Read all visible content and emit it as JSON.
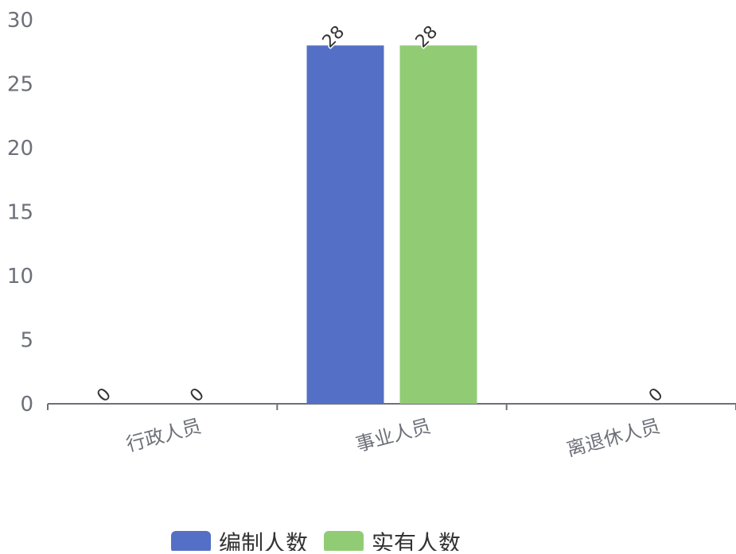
{
  "colors": {
    "series_1": "#5470c6",
    "series_2": "#91cc75",
    "axis": "#6e7079",
    "label_text": "#333333"
  },
  "chart_data": {
    "type": "bar",
    "categories": [
      "行政人员",
      "事业人员",
      "离退休人员"
    ],
    "series": [
      {
        "name": "编制人数",
        "values": [
          0,
          28,
          null
        ]
      },
      {
        "name": "实有人数",
        "values": [
          0,
          28,
          0
        ]
      }
    ],
    "ylim": [
      0,
      30
    ],
    "y_ticks": [
      0,
      5,
      10,
      15,
      20,
      25,
      30
    ],
    "grid": false,
    "legend_position": "bottom-center",
    "xlabel": "",
    "ylabel": "",
    "title": ""
  }
}
